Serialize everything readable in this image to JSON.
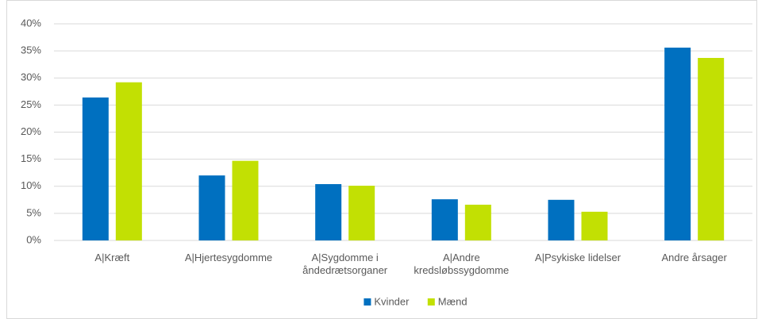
{
  "chart_data": {
    "type": "bar",
    "categories": [
      "A|Kræft",
      "A|Hjertesygdomme",
      "A|Sygdomme i åndedrætsorganer",
      "A|Andre kredsløbssygdomme",
      "A|Psykiske lidelser",
      "Andre årsager"
    ],
    "series": [
      {
        "name": "Kvinder",
        "color": "#0070c0",
        "values": [
          26.4,
          12.0,
          10.4,
          7.6,
          7.5,
          35.6
        ]
      },
      {
        "name": "Mænd",
        "color": "#c2e003",
        "values": [
          29.2,
          14.7,
          10.1,
          6.6,
          5.3,
          33.7
        ]
      }
    ],
    "ylim": [
      0,
      40
    ],
    "yticks": [
      {
        "value": 0,
        "label": "0%"
      },
      {
        "value": 5,
        "label": "5%"
      },
      {
        "value": 10,
        "label": "10%"
      },
      {
        "value": 15,
        "label": "15%"
      },
      {
        "value": 20,
        "label": "20%"
      },
      {
        "value": 25,
        "label": "25%"
      },
      {
        "value": 30,
        "label": "30%"
      },
      {
        "value": 35,
        "label": "35%"
      },
      {
        "value": 40,
        "label": "40%"
      }
    ],
    "grid": true,
    "legend": "bottom"
  }
}
